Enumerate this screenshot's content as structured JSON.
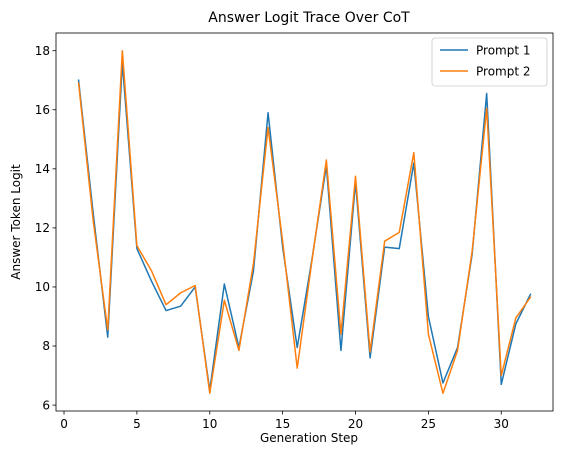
{
  "chart_data": {
    "type": "line",
    "title": "Answer Logit Trace Over CoT",
    "xlabel": "Generation Step",
    "ylabel": "Answer Token Logit",
    "xlim": [
      -0.55,
      33.55
    ],
    "ylim": [
      5.8,
      18.6
    ],
    "xticks": [
      0,
      5,
      10,
      15,
      20,
      25,
      30
    ],
    "yticks": [
      6,
      8,
      10,
      12,
      14,
      16,
      18
    ],
    "grid": false,
    "legend_position": "top-right",
    "x": [
      1,
      2,
      3,
      4,
      5,
      6,
      7,
      8,
      9,
      10,
      11,
      12,
      13,
      14,
      15,
      16,
      17,
      18,
      19,
      20,
      21,
      22,
      23,
      24,
      25,
      26,
      27,
      28,
      29,
      30,
      31,
      32
    ],
    "series": [
      {
        "name": "Prompt 1",
        "color": "#1f77b4",
        "values": [
          17.0,
          12.5,
          8.3,
          17.6,
          11.3,
          10.2,
          9.2,
          9.35,
          10.0,
          6.5,
          10.1,
          7.95,
          10.55,
          15.9,
          11.35,
          7.95,
          10.9,
          14.1,
          7.85,
          13.55,
          7.6,
          11.35,
          11.3,
          14.2,
          9.0,
          6.75,
          7.95,
          11.1,
          16.55,
          6.7,
          8.75,
          9.75
        ]
      },
      {
        "name": "Prompt 2",
        "color": "#ff7f0e",
        "values": [
          16.9,
          12.25,
          8.55,
          18.0,
          11.4,
          10.55,
          9.4,
          9.8,
          10.05,
          6.4,
          9.55,
          7.85,
          10.8,
          15.4,
          11.55,
          7.25,
          10.85,
          14.3,
          8.4,
          13.75,
          7.8,
          11.55,
          11.85,
          14.55,
          8.4,
          6.4,
          7.85,
          11.2,
          16.05,
          7.0,
          8.95,
          9.65
        ]
      }
    ]
  }
}
